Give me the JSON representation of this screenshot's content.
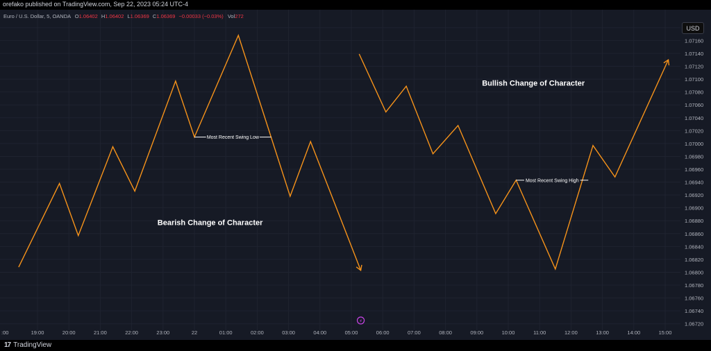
{
  "header": {
    "attribution": "orefako published on TradingView.com, Sep 22, 2023 05:24 UTC-4"
  },
  "legend": {
    "symbol": "Euro / U.S. Dollar, 5, OANDA",
    "open_label": "O",
    "open": "1.06402",
    "high_label": "H",
    "high": "1.06402",
    "low_label": "L",
    "low": "1.06369",
    "close_label": "C",
    "close": "1.06369",
    "change": "−0.00033 (−0.03%)",
    "vol_label": "Vol",
    "vol": "272"
  },
  "currency_button": "USD",
  "footer": {
    "brand": "TradingView"
  },
  "colors": {
    "background": "#161a25",
    "line": "#f7931a",
    "text": "#d1d4dc",
    "axis_text": "#b2b5be",
    "grid": "#1f2330",
    "negative": "#f23645",
    "annotation": "#ffffff",
    "marker": "#c843e6"
  },
  "chart_data": {
    "type": "line",
    "title": "",
    "xlabel": "",
    "ylabel": "",
    "grid": true,
    "y_axis_side": "right",
    "ylim": [
      1.0671,
      1.0721
    ],
    "x_ticks": [
      {
        "x": 18.5,
        "label": "19:00"
      },
      {
        "x": 19.5,
        "label": "20:00"
      },
      {
        "x": 20.5,
        "label": "21:00"
      },
      {
        "x": 21.5,
        "label": "22:00"
      },
      {
        "x": 22.5,
        "label": "23:00"
      },
      {
        "x": 23.5,
        "label": "22"
      },
      {
        "x": 24.5,
        "label": "01:00"
      },
      {
        "x": 25.5,
        "label": "02:00"
      },
      {
        "x": 26.5,
        "label": "03:00"
      },
      {
        "x": 27.5,
        "label": "04:00"
      },
      {
        "x": 28.5,
        "label": "05:00"
      },
      {
        "x": 29.5,
        "label": "06:00"
      },
      {
        "x": 30.5,
        "label": "07:00"
      },
      {
        "x": 31.5,
        "label": "08:00"
      },
      {
        "x": 32.5,
        "label": "09:00"
      },
      {
        "x": 33.5,
        "label": "10:00"
      },
      {
        "x": 34.5,
        "label": "11:00"
      },
      {
        "x": 35.5,
        "label": "12:00"
      },
      {
        "x": 36.5,
        "label": "13:00"
      },
      {
        "x": 37.5,
        "label": "14:00"
      },
      {
        "x": 38.5,
        "label": "15:00"
      }
    ],
    "y_ticks": [
      "1.07180",
      "1.07160",
      "1.07140",
      "1.07120",
      "1.07100",
      "1.07080",
      "1.07060",
      "1.07040",
      "1.07020",
      "1.07000",
      "1.06980",
      "1.06960",
      "1.06940",
      "1.06920",
      "1.06900",
      "1.06880",
      "1.06860",
      "1.06840",
      "1.06820",
      "1.06800",
      "1.06780",
      "1.06760",
      "1.06740",
      "1.06720"
    ],
    "series": [
      {
        "points": [
          {
            "x": 17.9,
            "y": 1.06808
          },
          {
            "x": 19.2,
            "y": 1.06938
          },
          {
            "x": 19.8,
            "y": 1.06857
          },
          {
            "x": 20.9,
            "y": 1.06995
          },
          {
            "x": 21.6,
            "y": 1.06926
          },
          {
            "x": 22.9,
            "y": 1.07097
          },
          {
            "x": 23.5,
            "y": 1.0701
          },
          {
            "x": 24.9,
            "y": 1.07168
          },
          {
            "x": 26.55,
            "y": 1.06918
          },
          {
            "x": 27.2,
            "y": 1.07003
          },
          {
            "x": 28.8,
            "y": 1.06803
          }
        ]
      },
      {
        "points": [
          {
            "x": 28.75,
            "y": 1.07139
          },
          {
            "x": 29.6,
            "y": 1.07049
          },
          {
            "x": 30.25,
            "y": 1.07089
          },
          {
            "x": 31.1,
            "y": 1.06984
          },
          {
            "x": 31.9,
            "y": 1.07028
          },
          {
            "x": 33.1,
            "y": 1.06891
          },
          {
            "x": 33.75,
            "y": 1.06943
          },
          {
            "x": 35.0,
            "y": 1.06805
          },
          {
            "x": 36.2,
            "y": 1.06997
          },
          {
            "x": 36.9,
            "y": 1.06948
          },
          {
            "x": 38.6,
            "y": 1.0713
          }
        ]
      }
    ],
    "annotations": [
      {
        "text": "Bearish Change of Character",
        "x": 24.0,
        "y": 1.06873
      },
      {
        "text": "Bullish Change of Character",
        "x": 34.3,
        "y": 1.0709
      },
      {
        "text": "Most Recent Swing Low",
        "level": 1.0701,
        "x_start": 23.5,
        "x_end": 25.95
      },
      {
        "text": "Most Recent Swing High",
        "level": 1.06943,
        "x_start": 33.75,
        "x_end": 36.05
      }
    ],
    "marker": {
      "x": 28.8,
      "label": "⚡"
    }
  }
}
